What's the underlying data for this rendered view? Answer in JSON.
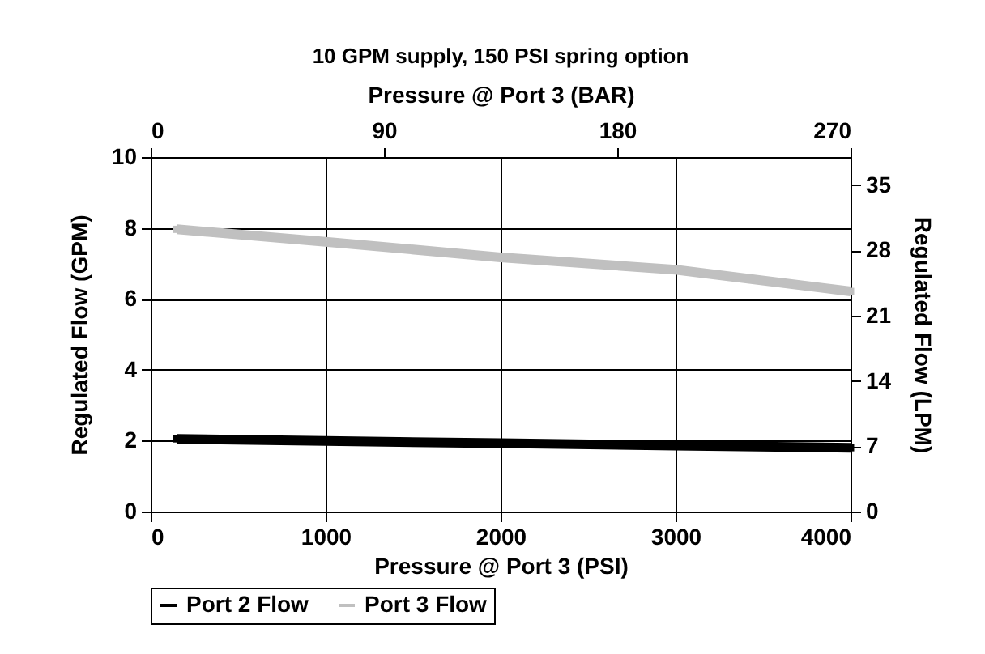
{
  "chart_data": {
    "type": "line",
    "title": "10 GPM supply, 150 PSI spring option",
    "xlabel": "Pressure @ Port 3 (PSI)",
    "x2label": "Pressure @ Port 3 (BAR)",
    "ylabel": "Regulated Flow (GPM)",
    "y2label": "Regulated Flow (LPM)",
    "x": [
      150,
      1000,
      2000,
      3000,
      4000
    ],
    "xlim": [
      0,
      4000
    ],
    "xticks": [
      0,
      1000,
      2000,
      3000,
      4000
    ],
    "x2lim": [
      0,
      270
    ],
    "x2ticks": [
      0,
      90,
      180,
      270
    ],
    "ylim": [
      0,
      10
    ],
    "yticks": [
      0,
      2,
      4,
      6,
      8,
      10
    ],
    "y2lim": [
      0,
      38
    ],
    "y2ticks": [
      0,
      7,
      14,
      21,
      28,
      35
    ],
    "series": [
      {
        "name": "Port 2 Flow",
        "color": "#000000",
        "values": [
          2.05,
          1.99,
          1.93,
          1.86,
          1.8
        ]
      },
      {
        "name": "Port 3 Flow",
        "color": "#c0c0c0",
        "values": [
          7.96,
          7.61,
          7.17,
          6.82,
          6.21
        ]
      }
    ],
    "grid": true,
    "legend": "bottom",
    "marker": "square",
    "line_style": "solid"
  }
}
